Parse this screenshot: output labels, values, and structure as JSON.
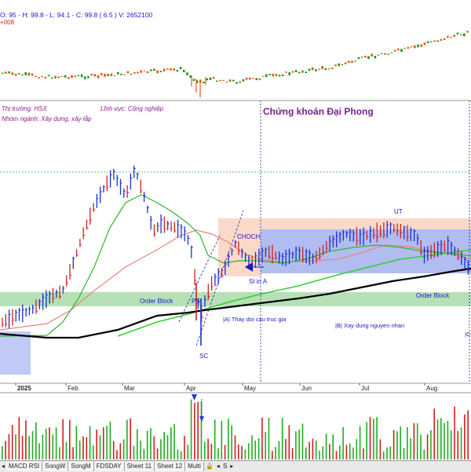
{
  "header": {
    "ohlc": "O: 95 - H: 99.8 - L: 94.1 - C: 99.8 ( 6.5 ) V: 2652100",
    "sub": "+008"
  },
  "info": {
    "market": "Thị trường: HSX",
    "sector": "Lĩnh vực: Công nghiệp",
    "group": "Nhóm ngành: Xây dựng, xây lắp"
  },
  "brand": "Chứng khoán Đại Phong",
  "annotations": {
    "order_block_left": "Order Block",
    "order_block_right": "Order Block",
    "choch": "CHOCH",
    "st_in_a": "St in A",
    "ut": "UT",
    "sc": "SC",
    "ps": "PS",
    "phase_a": "|A| Thay doi cau truc gia",
    "phase_b": "|B| Xay dung nguyen nhan",
    "c_mark": "|C"
  },
  "xaxis": [
    "2025",
    "Feb",
    "Mar",
    "Apr",
    "May",
    "Jun",
    "Jul",
    "Aug"
  ],
  "tabs": [
    "MACD RSI",
    "SongW",
    "SongM",
    "FDSDAY",
    "Sheet 11",
    "Sheet 12",
    "Multi"
  ],
  "colors": {
    "up": "#1a2fd0",
    "down": "#d41f1f",
    "ma_green": "#2fb52f",
    "ma_black": "#000000",
    "ma_pink": "#e8857a",
    "range_box": "#8ea0ee",
    "order_block": "#a9dba9",
    "brand": "#7a1f8c"
  }
}
